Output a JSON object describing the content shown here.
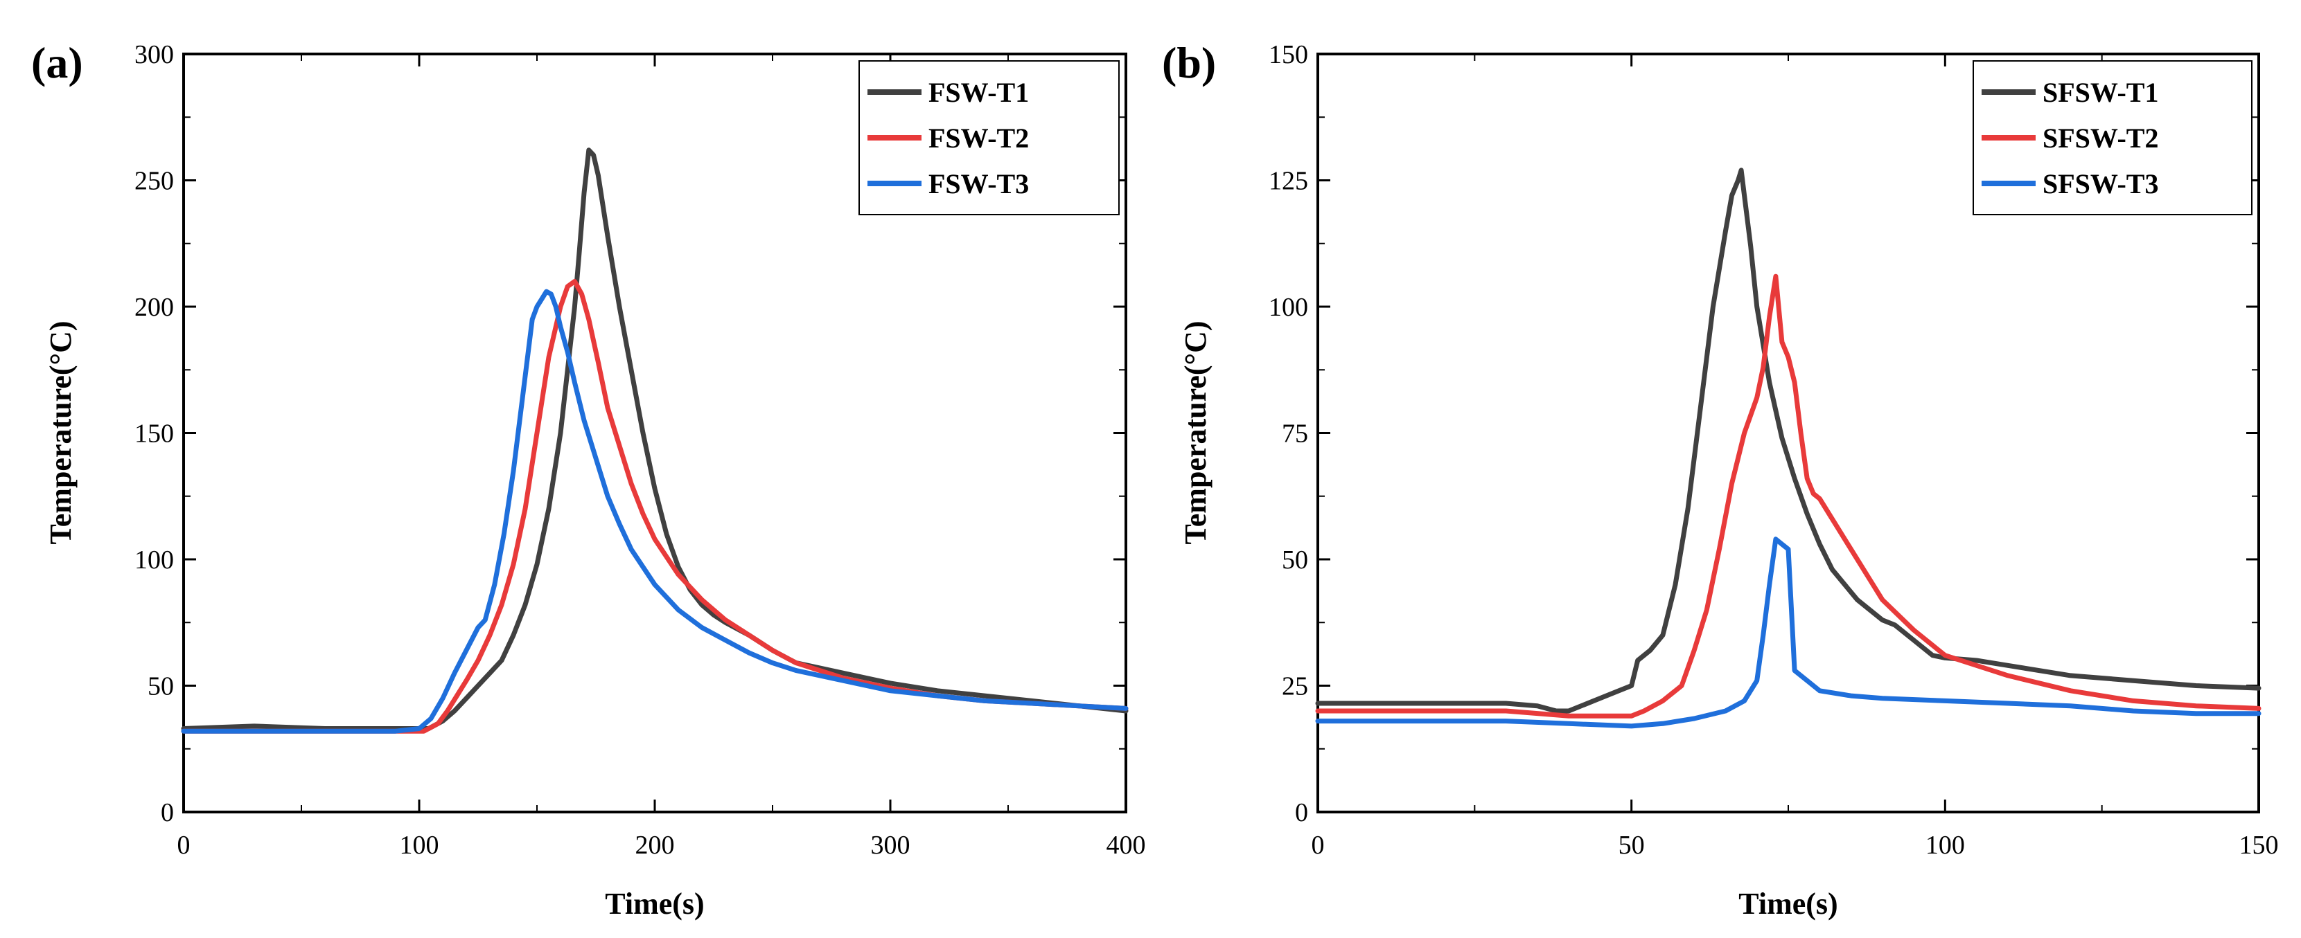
{
  "chart_data": [
    {
      "type": "line",
      "panel_label": "(a)",
      "xlabel": "Time(s)",
      "ylabel": "Temperature(°C)",
      "xlim": [
        0,
        400
      ],
      "ylim": [
        0,
        300
      ],
      "xticks": [
        0,
        100,
        200,
        300,
        400
      ],
      "yticks": [
        0,
        50,
        100,
        150,
        200,
        250,
        300
      ],
      "legend_position": "top-right",
      "series": [
        {
          "name": "FSW-T1",
          "color": "#404040",
          "x": [
            0,
            30,
            60,
            90,
            104,
            110,
            115,
            120,
            125,
            130,
            135,
            140,
            145,
            150,
            155,
            160,
            163,
            166,
            168,
            170,
            172,
            174,
            176,
            180,
            185,
            190,
            195,
            200,
            205,
            210,
            215,
            220,
            225,
            230,
            240,
            250,
            260,
            280,
            300,
            320,
            340,
            360,
            380,
            400
          ],
          "y": [
            33,
            34,
            33,
            33,
            33,
            36,
            40,
            45,
            50,
            55,
            60,
            70,
            82,
            98,
            120,
            150,
            175,
            200,
            222,
            245,
            262,
            260,
            252,
            228,
            200,
            175,
            150,
            128,
            110,
            97,
            88,
            82,
            78,
            75,
            70,
            64,
            59,
            55,
            51,
            48,
            46,
            44,
            42,
            40
          ]
        },
        {
          "name": "FSW-T2",
          "color": "#e83a3a",
          "x": [
            0,
            30,
            60,
            90,
            102,
            108,
            112,
            116,
            120,
            125,
            130,
            135,
            140,
            145,
            150,
            155,
            160,
            163,
            166,
            169,
            172,
            176,
            180,
            185,
            190,
            195,
            200,
            210,
            220,
            230,
            240,
            250,
            260,
            280,
            300,
            320,
            340,
            360,
            380,
            400
          ],
          "y": [
            32,
            32,
            32,
            32,
            32,
            35,
            40,
            46,
            52,
            60,
            70,
            82,
            98,
            120,
            150,
            180,
            200,
            208,
            210,
            205,
            195,
            178,
            160,
            145,
            130,
            118,
            108,
            94,
            84,
            76,
            70,
            64,
            59,
            53,
            49,
            46,
            44,
            43,
            42,
            41
          ]
        },
        {
          "name": "FSW-T3",
          "color": "#1f6fdb",
          "x": [
            0,
            30,
            60,
            90,
            100,
            105,
            110,
            115,
            120,
            125,
            128,
            132,
            136,
            140,
            144,
            148,
            150,
            152,
            154,
            156,
            158,
            160,
            163,
            166,
            170,
            175,
            180,
            185,
            190,
            200,
            210,
            220,
            230,
            240,
            250,
            260,
            280,
            300,
            320,
            340,
            360,
            380,
            400
          ],
          "y": [
            32,
            32,
            32,
            32,
            33,
            37,
            45,
            55,
            64,
            73,
            76,
            90,
            110,
            135,
            165,
            195,
            200,
            203,
            206,
            205,
            200,
            192,
            182,
            170,
            155,
            140,
            125,
            114,
            104,
            90,
            80,
            73,
            68,
            63,
            59,
            56,
            52,
            48,
            46,
            44,
            43,
            42,
            41
          ]
        }
      ]
    },
    {
      "type": "line",
      "panel_label": "(b)",
      "xlabel": "Time(s)",
      "ylabel": "Temperature(°C)",
      "xlim": [
        0,
        150
      ],
      "ylim": [
        0,
        150
      ],
      "xticks": [
        0,
        50,
        100,
        150
      ],
      "yticks": [
        0,
        25,
        50,
        75,
        100,
        125,
        150
      ],
      "legend_position": "top-right",
      "series": [
        {
          "name": "SFSW-T1",
          "color": "#404040",
          "x": [
            0,
            10,
            20,
            30,
            35,
            38,
            40,
            44,
            48,
            50,
            51,
            53,
            55,
            57,
            59,
            61,
            63,
            65,
            66,
            67,
            67.5,
            68,
            69,
            70,
            72,
            74,
            76,
            78,
            80,
            82,
            84,
            86,
            88,
            90,
            92,
            95,
            98,
            100,
            105,
            110,
            120,
            130,
            140,
            150
          ],
          "y": [
            21.5,
            21.5,
            21.5,
            21.5,
            21,
            20,
            20,
            22,
            24,
            25,
            30,
            32,
            35,
            45,
            60,
            80,
            100,
            115,
            122,
            125,
            127,
            122,
            112,
            100,
            85,
            74,
            66,
            59,
            53,
            48,
            45,
            42,
            40,
            38,
            37,
            34,
            31,
            30.5,
            30,
            29,
            27,
            26,
            25,
            24.5
          ]
        },
        {
          "name": "SFSW-T2",
          "color": "#e83a3a",
          "x": [
            0,
            10,
            20,
            30,
            40,
            45,
            50,
            52,
            55,
            58,
            60,
            62,
            64,
            66,
            68,
            70,
            71,
            72,
            73,
            74,
            75,
            76,
            77,
            78,
            79,
            80,
            82,
            85,
            88,
            90,
            95,
            100,
            110,
            120,
            130,
            140,
            150
          ],
          "y": [
            20,
            20,
            20,
            20,
            19,
            19,
            19,
            20,
            22,
            25,
            32,
            40,
            52,
            65,
            75,
            82,
            88,
            98,
            106,
            93,
            90,
            85,
            75,
            66,
            63,
            62,
            58,
            52,
            46,
            42,
            36,
            31,
            27,
            24,
            22,
            21,
            20.5
          ]
        },
        {
          "name": "SFSW-T3",
          "color": "#1f6fdb",
          "x": [
            0,
            10,
            20,
            30,
            40,
            50,
            55,
            60,
            65,
            68,
            70,
            71,
            72,
            73,
            74,
            75,
            76,
            78,
            80,
            85,
            90,
            100,
            110,
            120,
            130,
            140,
            150
          ],
          "y": [
            18,
            18,
            18,
            18,
            17.5,
            17,
            17.5,
            18.5,
            20,
            22,
            26,
            35,
            45,
            54,
            53,
            52,
            28,
            26,
            24,
            23,
            22.5,
            22,
            21.5,
            21,
            20,
            19.5,
            19.5
          ]
        }
      ]
    }
  ]
}
